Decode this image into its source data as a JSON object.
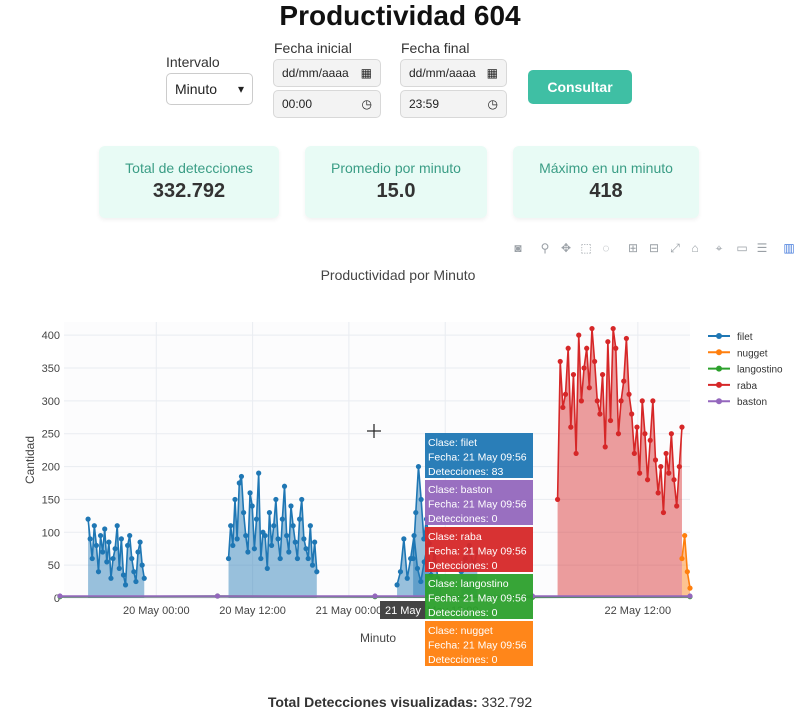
{
  "title": "Productividad 604",
  "filters": {
    "interval_label": "Intervalo",
    "interval_value": "Minuto",
    "start_label": "Fecha inicial",
    "start_date": "dd/mm/aaaa",
    "start_time": "00:00",
    "end_label": "Fecha final",
    "end_date": "dd/mm/aaaa",
    "end_time": "23:59",
    "submit_label": "Consultar"
  },
  "stats": [
    {
      "label": "Total de detecciones",
      "value": "332.792"
    },
    {
      "label": "Promedio por minuto",
      "value": "15.0"
    },
    {
      "label": "Máximo en un minuto",
      "value": "418"
    }
  ],
  "modebar_icons": [
    "camera-icon",
    "zoom-icon",
    "pan-icon",
    "box-select-icon",
    "lasso-icon",
    "zoom-in-icon",
    "zoom-out-icon",
    "autoscale-icon",
    "home-icon",
    "spike-lines-icon",
    "hover-closest-icon",
    "hover-compare-icon",
    "plotly-logo-icon"
  ],
  "chart_data": {
    "type": "area",
    "title": "Productividad por Minuto",
    "xlabel": "Minuto",
    "ylabel": "Cantidad",
    "ylim": [
      0,
      420
    ],
    "yticks": [
      "0",
      "50",
      "100",
      "150",
      "200",
      "250",
      "300",
      "350",
      "400"
    ],
    "xticks": [
      "20 May 00:00",
      "20 May 12:00",
      "21 May 00:00",
      "21 May 12:00",
      "22 May 12:00"
    ],
    "grid": true,
    "legend_position": "top-right",
    "series": [
      {
        "name": "filet",
        "color": "#1f77b4",
        "segments": [
          {
            "start": "19 May 15:30",
            "end": "19 May 22:30",
            "values": [
              120,
              90,
              60,
              110,
              80,
              40,
              95,
              70,
              105,
              55,
              85,
              30,
              60,
              75,
              110,
              45,
              90,
              35,
              20,
              80,
              95,
              60,
              40,
              25,
              70,
              85,
              50,
              30
            ]
          },
          {
            "start": "20 May 09:00",
            "end": "20 May 20:00",
            "values": [
              60,
              110,
              80,
              150,
              90,
              175,
              185,
              130,
              95,
              70,
              160,
              140,
              75,
              120,
              190,
              60,
              100,
              95,
              45,
              130,
              80,
              110,
              150,
              90,
              60,
              120,
              170,
              95,
              70,
              140,
              110,
              85,
              60,
              120,
              150,
              90,
              75,
              60,
              110,
              50,
              85,
              40
            ]
          },
          {
            "start": "21 May 06:00",
            "end": "21 May 11:30",
            "values": [
              20,
              40,
              90,
              30,
              60,
              95,
              45,
              25,
              55,
              80,
              35,
              70,
              30,
              20
            ]
          },
          {
            "start": "21 May 08:00",
            "end": "21 May 10:00",
            "values": [
              60,
              130,
              200,
              150,
              90,
              120,
              83
            ]
          },
          {
            "start": "21 May 14:00",
            "end": "21 May 16:00",
            "values": [
              40,
              60,
              80,
              50,
              70
            ]
          }
        ]
      },
      {
        "name": "nugget",
        "color": "#ff7f0e",
        "segments": [
          {
            "start": "22 May 17:30",
            "end": "22 May 18:30",
            "values": [
              60,
              95,
              40,
              15
            ]
          }
        ]
      },
      {
        "name": "langostino",
        "color": "#2ca02c",
        "segments": [
          {
            "start": "19 May 12:00",
            "end": "22 May 18:30",
            "values": [
              2,
              3,
              2,
              1,
              2
            ]
          }
        ]
      },
      {
        "name": "raba",
        "color": "#d62728",
        "segments": [
          {
            "start": "22 May 02:00",
            "end": "22 May 17:30",
            "values": [
              150,
              360,
              290,
              310,
              380,
              260,
              340,
              220,
              400,
              300,
              350,
              380,
              320,
              410,
              360,
              300,
              280,
              340,
              230,
              390,
              270,
              410,
              380,
              250,
              300,
              330,
              395,
              310,
              280,
              220,
              260,
              190,
              300,
              250,
              180,
              240,
              300,
              210,
              160,
              200,
              130,
              220,
              190,
              250,
              180,
              140,
              200,
              260
            ]
          }
        ]
      },
      {
        "name": "baston",
        "color": "#9467bd",
        "segments": [
          {
            "start": "19 May 12:00",
            "end": "22 May 18:30",
            "values": [
              3,
              3,
              3,
              3,
              3
            ]
          }
        ]
      }
    ],
    "hover": {
      "x_label": "21 May",
      "entries": [
        {
          "clase": "filet",
          "fecha": "21 May 09:56",
          "detecciones": "83",
          "color": "#1f77b4"
        },
        {
          "clase": "baston",
          "fecha": "21 May 09:56",
          "detecciones": "0",
          "color": "#9467bd"
        },
        {
          "clase": "raba",
          "fecha": "21 May 09:56",
          "detecciones": "0",
          "color": "#d62728"
        },
        {
          "clase": "langostino",
          "fecha": "21 May 09:56",
          "detecciones": "0",
          "color": "#2ca02c"
        },
        {
          "clase": "nugget",
          "fecha": "21 May 09:56",
          "detecciones": "0",
          "color": "#ff7f0e"
        }
      ],
      "label_clase": "Clase: ",
      "label_fecha": "Fecha: ",
      "label_detecciones": "Detecciones: "
    }
  },
  "footer": {
    "label": "Total Detecciones visualizadas:",
    "value": "332.792"
  }
}
